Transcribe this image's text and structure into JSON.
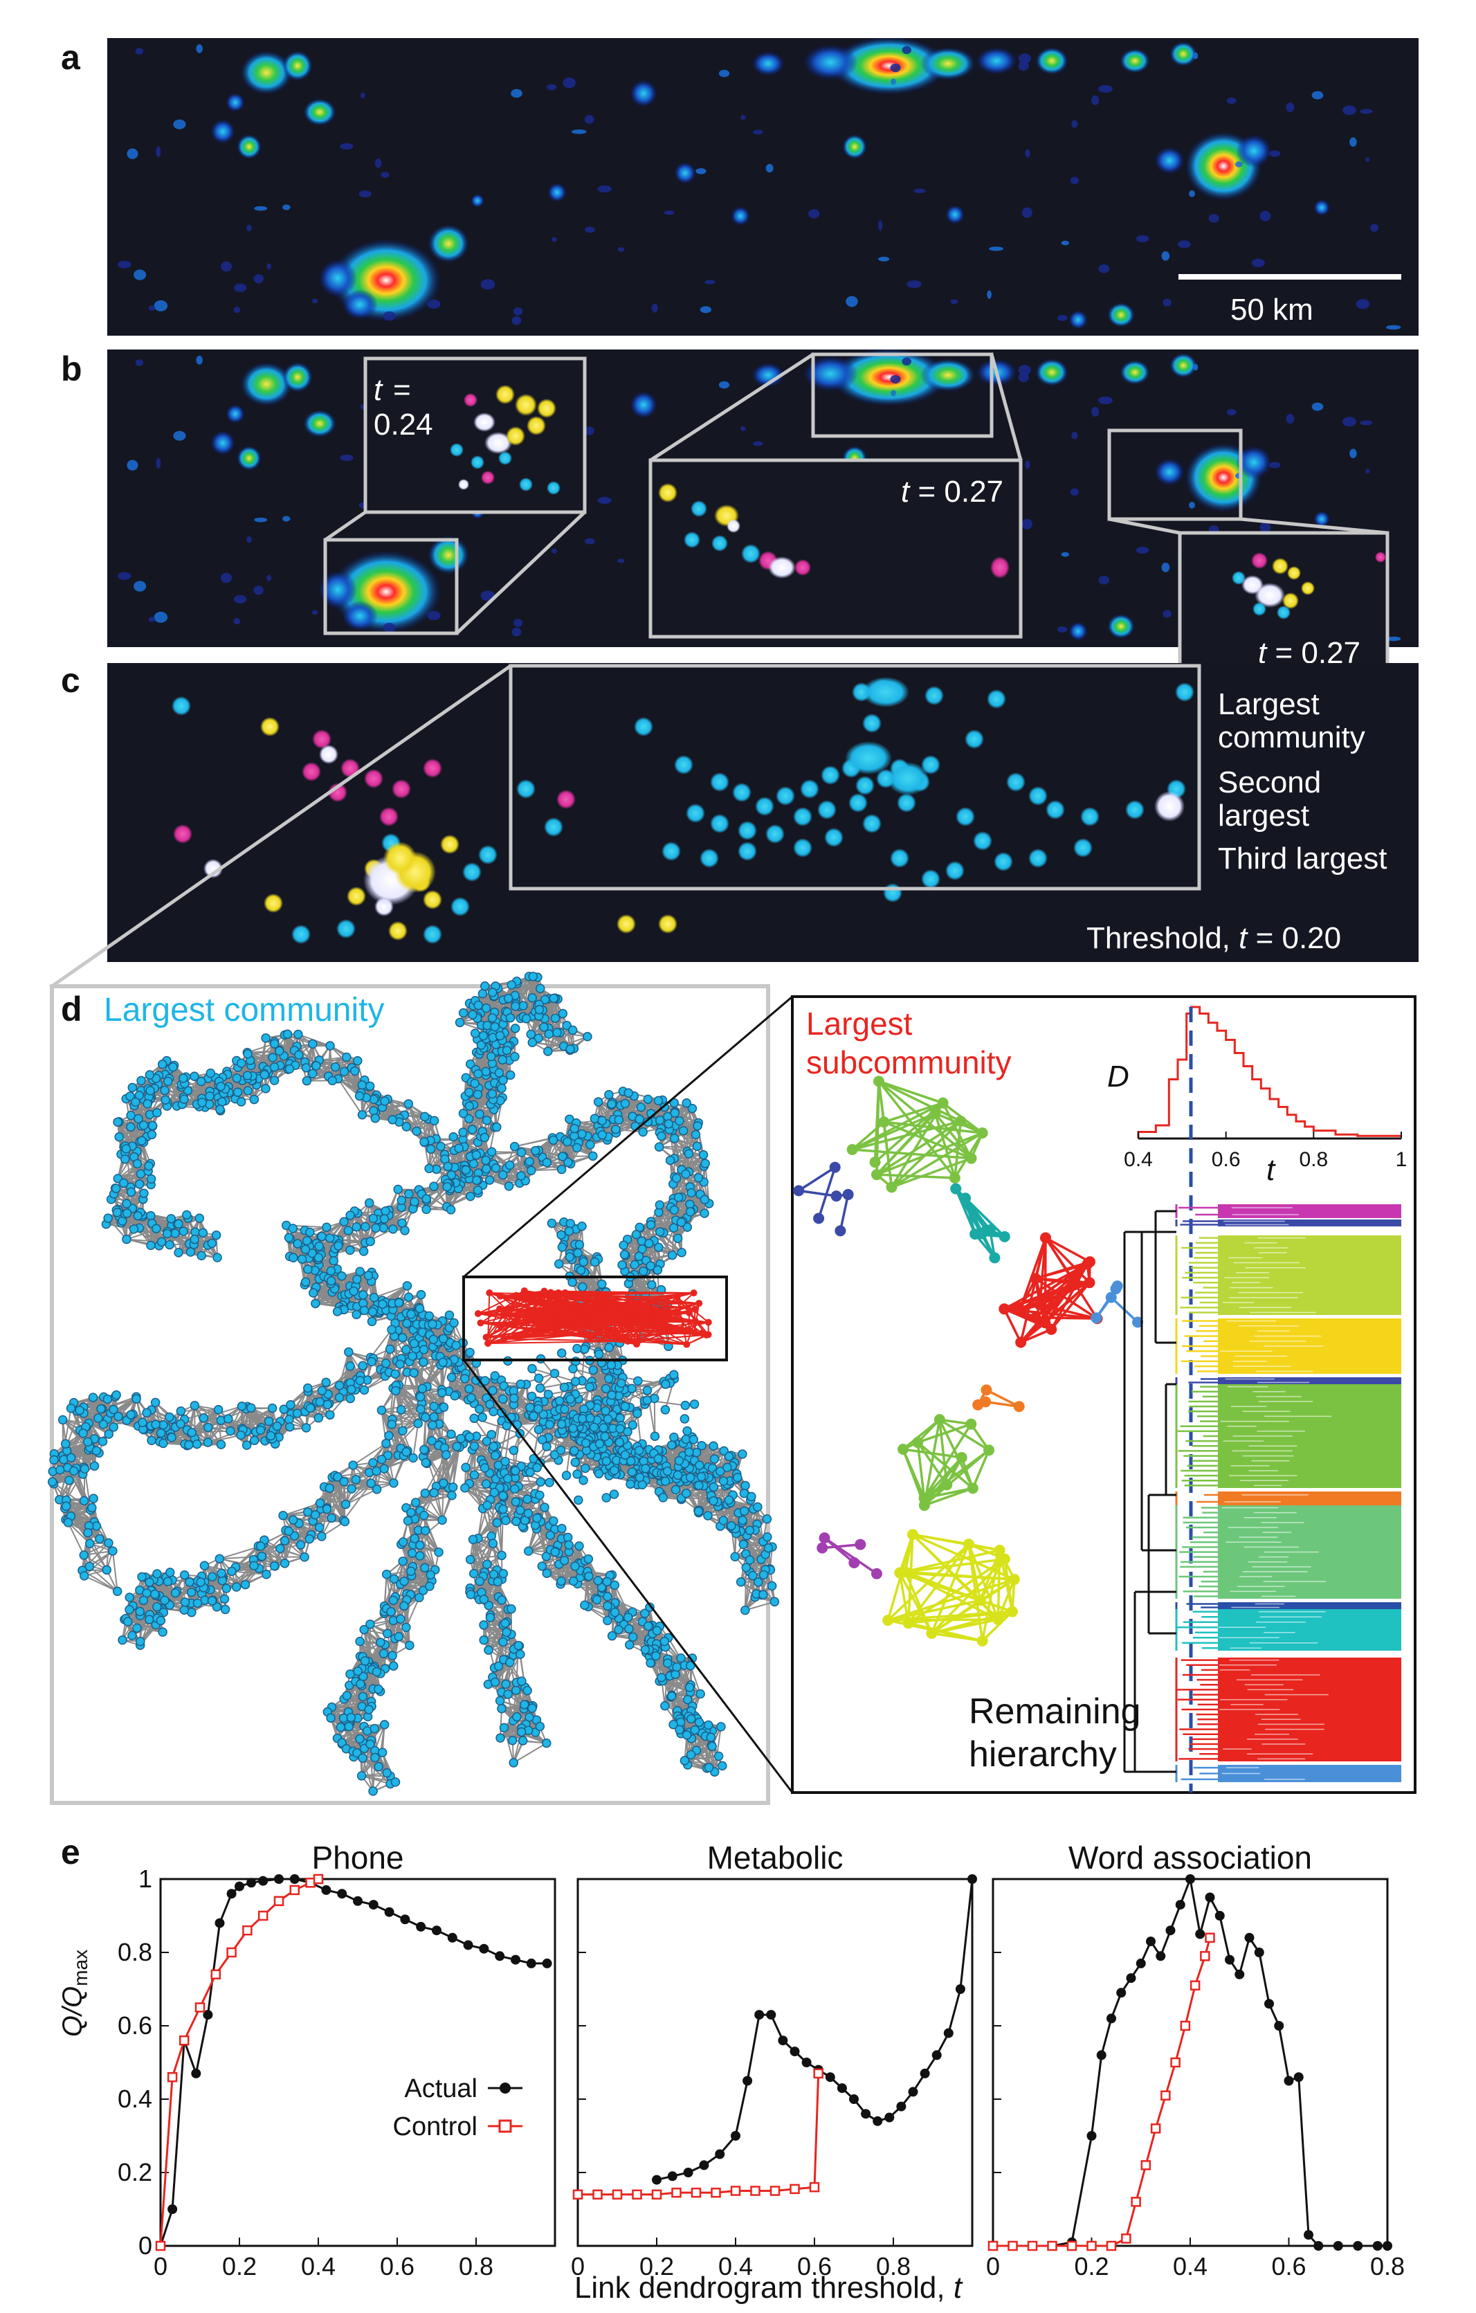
{
  "panels": {
    "a": {
      "label": "a",
      "scale_bar": "50 km"
    },
    "b": {
      "label": "b",
      "insets": [
        {
          "t_label": "t",
          "t_value": "= 0.24",
          "eq": "=",
          "num": "0.24"
        },
        {
          "t_label": "t",
          "t_value": " = 0.27"
        },
        {
          "t_label": "t",
          "t_value": " = 0.27"
        }
      ]
    },
    "c": {
      "label": "c",
      "legend": [
        {
          "line1": "Largest",
          "line2": "community",
          "color": "#1fb5e6"
        },
        {
          "line1": "Second",
          "line2": "largest",
          "color": "#e0309a"
        },
        {
          "line1": "Third largest",
          "line2": "",
          "color": "#f3e321"
        }
      ],
      "threshold_prefix": "Threshold, ",
      "threshold_t": "t",
      "threshold_value": " = 0.20"
    },
    "d": {
      "label": "d",
      "title": "Largest community",
      "title_color": "#1fb5e6",
      "sub_line1": "Largest",
      "sub_line2": "subcommunity",
      "sub_color": "#e8251f",
      "inset_ylabel": "D",
      "inset_xlabel": "t",
      "inset_ticks": [
        "0.4",
        "0.6",
        "0.8",
        "1"
      ],
      "remaining_line1": "Remaining",
      "remaining_line2": "hierarchy"
    },
    "e": {
      "label": "e",
      "ylabel_main": "Q/Q",
      "ylabel_sub": "max",
      "xlabel_prefix": "Link dendrogram threshold, ",
      "xlabel_t": "t",
      "legend": [
        {
          "name": "Actual",
          "color": "#111111",
          "marker": "circle"
        },
        {
          "name": "Control",
          "color": "#e8251f",
          "marker": "square"
        }
      ]
    }
  },
  "chart_data": [
    {
      "type": "line",
      "title": "Phone",
      "xlim": [
        0,
        1.0
      ],
      "ylim": [
        0,
        1
      ],
      "xticks": [
        "0",
        "0.2",
        "0.4",
        "0.6",
        "0.8"
      ],
      "yticks": [
        "0",
        "0.2",
        "0.4",
        "0.6",
        "0.8",
        "1"
      ],
      "series": [
        {
          "name": "Actual",
          "x": [
            0,
            0.03,
            0.06,
            0.09,
            0.12,
            0.15,
            0.18,
            0.2,
            0.23,
            0.26,
            0.3,
            0.34,
            0.38,
            0.42,
            0.46,
            0.5,
            0.54,
            0.58,
            0.62,
            0.66,
            0.7,
            0.74,
            0.78,
            0.82,
            0.86,
            0.9,
            0.94,
            0.98
          ],
          "y": [
            0,
            0.1,
            0.56,
            0.47,
            0.63,
            0.88,
            0.96,
            0.98,
            0.99,
            0.995,
            1.0,
            1.0,
            0.99,
            0.97,
            0.96,
            0.94,
            0.93,
            0.91,
            0.89,
            0.87,
            0.86,
            0.84,
            0.82,
            0.81,
            0.79,
            0.78,
            0.77,
            0.77
          ]
        },
        {
          "name": "Control",
          "x": [
            0,
            0.03,
            0.06,
            0.1,
            0.14,
            0.18,
            0.22,
            0.26,
            0.3,
            0.34,
            0.38,
            0.4
          ],
          "y": [
            0,
            0.46,
            0.56,
            0.65,
            0.74,
            0.8,
            0.86,
            0.9,
            0.94,
            0.97,
            0.99,
            1.0
          ]
        }
      ]
    },
    {
      "type": "line",
      "title": "Metabolic",
      "xlim": [
        0,
        1.0
      ],
      "ylim": [
        0,
        1
      ],
      "xticks": [
        "0",
        "0.2",
        "0.4",
        "0.6",
        "0.8"
      ],
      "yticks": [],
      "series": [
        {
          "name": "Actual",
          "x": [
            0.2,
            0.24,
            0.28,
            0.32,
            0.36,
            0.4,
            0.43,
            0.46,
            0.49,
            0.52,
            0.55,
            0.58,
            0.61,
            0.64,
            0.67,
            0.7,
            0.73,
            0.76,
            0.79,
            0.82,
            0.85,
            0.88,
            0.91,
            0.94,
            0.97,
            1.0
          ],
          "y": [
            0.18,
            0.19,
            0.2,
            0.22,
            0.25,
            0.3,
            0.45,
            0.63,
            0.63,
            0.56,
            0.53,
            0.5,
            0.48,
            0.46,
            0.43,
            0.4,
            0.36,
            0.34,
            0.35,
            0.38,
            0.42,
            0.47,
            0.52,
            0.58,
            0.7,
            1.0
          ]
        },
        {
          "name": "Control",
          "x": [
            0,
            0.05,
            0.1,
            0.15,
            0.2,
            0.25,
            0.3,
            0.35,
            0.4,
            0.45,
            0.5,
            0.55,
            0.6,
            0.61
          ],
          "y": [
            0.14,
            0.14,
            0.14,
            0.14,
            0.14,
            0.145,
            0.145,
            0.145,
            0.15,
            0.15,
            0.15,
            0.155,
            0.16,
            0.47
          ]
        }
      ]
    },
    {
      "type": "line",
      "title": "Word association",
      "xlim": [
        0,
        0.8
      ],
      "ylim": [
        0,
        1
      ],
      "xticks": [
        "0",
        "0.2",
        "0.4",
        "0.6",
        "0.8"
      ],
      "yticks": [],
      "series": [
        {
          "name": "Actual",
          "x": [
            0,
            0.04,
            0.08,
            0.12,
            0.16,
            0.2,
            0.22,
            0.24,
            0.26,
            0.28,
            0.3,
            0.32,
            0.34,
            0.36,
            0.38,
            0.4,
            0.42,
            0.44,
            0.46,
            0.48,
            0.5,
            0.52,
            0.54,
            0.56,
            0.58,
            0.6,
            0.62,
            0.64,
            0.66,
            0.7,
            0.74,
            0.78,
            0.8
          ],
          "y": [
            0,
            0,
            0,
            0,
            0.01,
            0.3,
            0.52,
            0.62,
            0.69,
            0.73,
            0.77,
            0.83,
            0.79,
            0.86,
            0.93,
            1.0,
            0.85,
            0.95,
            0.9,
            0.78,
            0.74,
            0.84,
            0.8,
            0.66,
            0.6,
            0.45,
            0.46,
            0.03,
            0,
            0,
            0,
            0,
            0
          ]
        },
        {
          "name": "Control",
          "x": [
            0,
            0.04,
            0.08,
            0.12,
            0.16,
            0.2,
            0.24,
            0.27,
            0.29,
            0.31,
            0.33,
            0.35,
            0.37,
            0.39,
            0.41,
            0.43,
            0.44
          ],
          "y": [
            0,
            0,
            0,
            0,
            0,
            0,
            0,
            0.02,
            0.12,
            0.22,
            0.32,
            0.41,
            0.5,
            0.6,
            0.71,
            0.79,
            0.84
          ]
        }
      ]
    },
    {
      "type": "line",
      "title": "",
      "xlabel": "t",
      "ylabel": "D",
      "xlim": [
        0.4,
        1
      ],
      "series": [
        {
          "name": "",
          "x": [
            0.4,
            0.44,
            0.47,
            0.49,
            0.51,
            0.52,
            0.54,
            0.56,
            0.58,
            0.6,
            0.62,
            0.64,
            0.66,
            0.68,
            0.7,
            0.72,
            0.74,
            0.76,
            0.78,
            0.8,
            0.85,
            0.9,
            0.95,
            1.0
          ],
          "y": [
            0.05,
            0.1,
            0.45,
            0.6,
            0.95,
            1.0,
            0.95,
            0.88,
            0.82,
            0.75,
            0.65,
            0.55,
            0.45,
            0.38,
            0.3,
            0.24,
            0.18,
            0.13,
            0.09,
            0.06,
            0.03,
            0.02,
            0.02,
            0.02
          ]
        }
      ]
    }
  ]
}
